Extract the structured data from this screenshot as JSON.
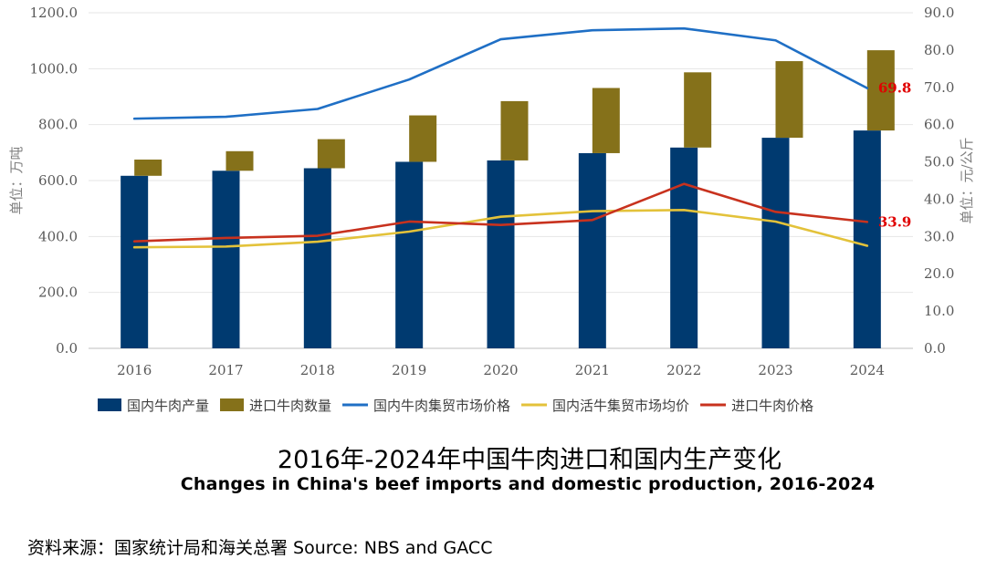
{
  "chart_data": {
    "type": "bar+line",
    "categories": [
      "2016",
      "2017",
      "2018",
      "2019",
      "2020",
      "2021",
      "2022",
      "2023",
      "2024"
    ],
    "bar_series": [
      {
        "name": "国内牛肉产量",
        "axis": "left",
        "color": "#003a70",
        "values": [
          617,
          635,
          644,
          667,
          672,
          698,
          718,
          753,
          779
        ]
      },
      {
        "name": "进口牛肉数量",
        "axis": "left",
        "color": "#85711a",
        "stacked_on": "国内牛肉产量",
        "values": [
          58,
          70,
          104,
          166,
          212,
          233,
          269,
          274,
          287
        ]
      }
    ],
    "line_series": [
      {
        "name": "国内牛肉集贸市场价格",
        "axis": "right",
        "color": "#1f6fc5",
        "values": [
          61.6,
          62.1,
          64.2,
          72.1,
          82.9,
          85.3,
          85.8,
          82.6,
          69.8
        ],
        "end_label": "69.8"
      },
      {
        "name": "国内活牛集贸市场均价",
        "axis": "right",
        "color": "#e3c23a",
        "values": [
          27.1,
          27.3,
          28.6,
          31.3,
          35.3,
          36.8,
          37.1,
          34.0,
          27.5
        ]
      },
      {
        "name": "进口牛肉价格",
        "axis": "right",
        "color": "#c8321e",
        "values": [
          28.7,
          29.6,
          30.2,
          34.0,
          33.1,
          34.4,
          44.1,
          36.6,
          33.9
        ],
        "end_label": "33.9"
      }
    ],
    "y_left": {
      "label": "单位：万吨",
      "min": 0,
      "max": 1200,
      "step": 200,
      "tick_labels": [
        "0.0",
        "200.0",
        "400.0",
        "600.0",
        "800.0",
        "1000.0",
        "1200.0"
      ]
    },
    "y_right": {
      "label": "单位：元/公斤",
      "min": 0,
      "max": 90,
      "step": 10,
      "tick_labels": [
        "0.0",
        "10.0",
        "20.0",
        "30.0",
        "40.0",
        "50.0",
        "60.0",
        "70.0",
        "80.0",
        "90.0"
      ]
    },
    "legend": [
      "国内牛肉产量",
      "进口牛肉数量",
      "国内牛肉集贸市场价格",
      "国内活牛集贸市场均价",
      "进口牛肉价格"
    ],
    "legend_position": "bottom",
    "grid": true,
    "title": "2016年-2024年中国牛肉进口和国内生产变化",
    "subtitle": "Changes in China's beef imports and domestic production, 2016-2024"
  },
  "source": "资料来源：国家统计局和海关总署  Source: NBS and GACC"
}
